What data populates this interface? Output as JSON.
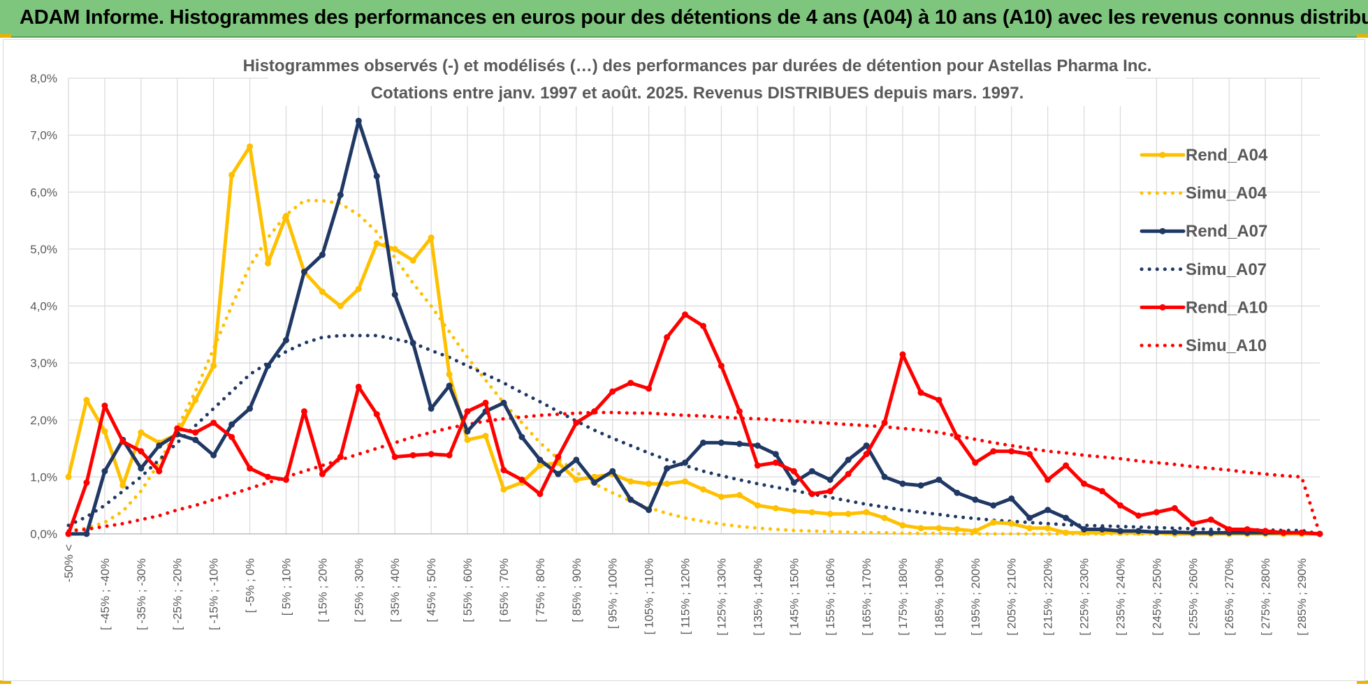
{
  "header": {
    "title": "ADAM Informe. Histogrammes des performances en euros pour des détentions de 4 ans (A04) à 10 ans (A10) avec les revenus connus distribués",
    "bg_color": "#7ec67d"
  },
  "chart_data": {
    "type": "line",
    "title_lines": [
      "Histogrammes observés (-) et modélisés (…) des performances par durées de détention pour Astellas Pharma Inc.",
      "Cotations entre janv. 1997 et août. 2025. Revenus DISTRIBUES depuis mars. 1997."
    ],
    "ylim": [
      0,
      8
    ],
    "y_ticks": [
      "0,0%",
      "1,0%",
      "2,0%",
      "3,0%",
      "4,0%",
      "5,0%",
      "6,0%",
      "7,0%",
      "8,0%"
    ],
    "grid": true,
    "legend_position": "right",
    "x_tick_labels": [
      "-50% <",
      "[ -45% ; -40%",
      "[ -35% ; -30%",
      "[ -25% ; -20%",
      "[ -15% ; -10%",
      "[ -5% ; 0%",
      "[ 5% ; 10%",
      "[ 15% ; 20%",
      "[ 25% ; 30%",
      "[ 35% ; 40%",
      "[ 45% ; 50%",
      "[ 55% ; 60%",
      "[ 65% ; 70%",
      "[ 75% ; 80%",
      "[ 85% ; 90%",
      "[ 95% ; 100%",
      "[ 105% ; 110%",
      "[ 115% ; 120%",
      "[ 125% ; 130%",
      "[ 135% ; 140%",
      "[ 145% ; 150%",
      "[ 155% ; 160%",
      "[ 165% ; 170%",
      "[ 175% ; 180%",
      "[ 185% ; 190%",
      "[ 195% ; 200%",
      "[ 205% ; 210%",
      "[ 215% ; 220%",
      "[ 225% ; 230%",
      "[ 235% ; 240%",
      "[ 245% ; 250%",
      "[ 255% ; 260%",
      "[ 265% ; 270%",
      "[ 275% ; 280%",
      "[ 285% ; 290%"
    ],
    "series": [
      {
        "name": "Rend_A04",
        "color": "#ffc000",
        "style": "solid",
        "markers": true,
        "values": [
          1.0,
          2.35,
          1.8,
          0.85,
          1.78,
          1.6,
          1.75,
          2.35,
          2.95,
          6.3,
          6.8,
          4.75,
          5.58,
          4.6,
          4.25,
          4.0,
          4.3,
          5.1,
          5.0,
          4.8,
          5.2,
          2.8,
          1.65,
          1.72,
          0.78,
          0.9,
          1.2,
          1.25,
          0.95,
          1.0,
          1.05,
          0.92,
          0.88,
          0.88,
          0.92,
          0.78,
          0.65,
          0.68,
          0.5,
          0.45,
          0.4,
          0.38,
          0.35,
          0.35,
          0.38,
          0.28,
          0.15,
          0.1,
          0.1,
          0.08,
          0.05,
          0.2,
          0.18,
          0.1,
          0.1,
          0.02,
          0.02,
          0.02,
          0.02,
          0.02,
          0.02,
          0.0,
          0.0,
          0.0,
          0.0,
          0.0,
          0.0,
          0.0,
          0.0,
          0.0
        ]
      },
      {
        "name": "Simu_A04",
        "color": "#ffc000",
        "style": "dotted",
        "markers": false,
        "values": [
          0.05,
          0.1,
          0.2,
          0.4,
          0.75,
          1.25,
          1.85,
          2.5,
          3.25,
          4.0,
          4.7,
          5.2,
          5.6,
          5.85,
          5.85,
          5.8,
          5.6,
          5.3,
          4.85,
          4.4,
          4.0,
          3.55,
          3.1,
          2.7,
          2.3,
          1.95,
          1.6,
          1.32,
          1.08,
          0.88,
          0.72,
          0.58,
          0.46,
          0.36,
          0.28,
          0.22,
          0.17,
          0.13,
          0.1,
          0.08,
          0.06,
          0.05,
          0.04,
          0.03,
          0.02,
          0.02,
          0.01,
          0.01,
          0.01,
          0.0,
          0.0,
          0.0,
          0.0,
          0.0,
          0.0,
          0.0,
          0.0,
          0.0,
          0.0,
          0.0,
          0.0,
          0.0,
          0.0,
          0.0,
          0.0,
          0.0,
          0.0,
          0.0,
          0.0,
          0.0
        ]
      },
      {
        "name": "Rend_A07",
        "color": "#1f3864",
        "style": "solid",
        "markers": true,
        "values": [
          0.0,
          0.0,
          1.1,
          1.65,
          1.15,
          1.55,
          1.75,
          1.65,
          1.38,
          1.92,
          2.2,
          2.95,
          3.4,
          4.6,
          4.9,
          5.95,
          7.25,
          6.28,
          4.2,
          3.35,
          2.2,
          2.6,
          1.8,
          2.15,
          2.3,
          1.7,
          1.3,
          1.05,
          1.3,
          0.9,
          1.1,
          0.6,
          0.42,
          1.15,
          1.25,
          1.6,
          1.6,
          1.58,
          1.55,
          1.4,
          0.9,
          1.1,
          0.95,
          1.3,
          1.55,
          1.0,
          0.88,
          0.85,
          0.95,
          0.72,
          0.6,
          0.5,
          0.62,
          0.28,
          0.42,
          0.28,
          0.08,
          0.08,
          0.05,
          0.05,
          0.03,
          0.03,
          0.02,
          0.02,
          0.02,
          0.02,
          0.02,
          0.02,
          0.02,
          0.0
        ]
      },
      {
        "name": "Simu_A07",
        "color": "#1f3864",
        "style": "dotted",
        "markers": false,
        "values": [
          0.15,
          0.3,
          0.5,
          0.75,
          1.0,
          1.3,
          1.6,
          1.9,
          2.2,
          2.5,
          2.8,
          3.0,
          3.2,
          3.35,
          3.45,
          3.48,
          3.48,
          3.48,
          3.42,
          3.35,
          3.22,
          3.1,
          2.95,
          2.8,
          2.65,
          2.48,
          2.32,
          2.15,
          1.98,
          1.82,
          1.68,
          1.55,
          1.42,
          1.3,
          1.2,
          1.1,
          1.02,
          0.95,
          0.88,
          0.82,
          0.76,
          0.7,
          0.64,
          0.58,
          0.52,
          0.47,
          0.42,
          0.38,
          0.34,
          0.3,
          0.27,
          0.24,
          0.22,
          0.2,
          0.18,
          0.16,
          0.15,
          0.14,
          0.13,
          0.12,
          0.11,
          0.1,
          0.09,
          0.08,
          0.08,
          0.07,
          0.07,
          0.06,
          0.06,
          0.0
        ]
      },
      {
        "name": "Rend_A10",
        "color": "#ff0000",
        "style": "solid",
        "markers": true,
        "values": [
          0.0,
          0.9,
          2.25,
          1.62,
          1.45,
          1.1,
          1.85,
          1.78,
          1.95,
          1.7,
          1.15,
          1.0,
          0.95,
          2.15,
          1.05,
          1.35,
          2.58,
          2.1,
          1.35,
          1.38,
          1.4,
          1.38,
          2.15,
          2.3,
          1.12,
          0.95,
          0.7,
          1.35,
          1.95,
          2.15,
          2.5,
          2.65,
          2.55,
          3.45,
          3.85,
          3.65,
          2.95,
          2.15,
          1.2,
          1.25,
          1.1,
          0.7,
          0.75,
          1.05,
          1.4,
          1.95,
          3.15,
          2.48,
          2.35,
          1.7,
          1.25,
          1.45,
          1.45,
          1.4,
          0.95,
          1.2,
          0.88,
          0.75,
          0.5,
          0.32,
          0.38,
          0.45,
          0.18,
          0.25,
          0.08,
          0.08,
          0.05,
          0.02,
          0.02,
          0.0
        ]
      },
      {
        "name": "Simu_A10",
        "color": "#ff0000",
        "style": "dotted",
        "markers": false,
        "values": [
          0.05,
          0.08,
          0.13,
          0.18,
          0.25,
          0.32,
          0.42,
          0.5,
          0.6,
          0.7,
          0.8,
          0.9,
          1.0,
          1.1,
          1.2,
          1.3,
          1.4,
          1.5,
          1.6,
          1.7,
          1.78,
          1.86,
          1.92,
          1.98,
          2.02,
          2.05,
          2.08,
          2.1,
          2.12,
          2.13,
          2.13,
          2.12,
          2.12,
          2.1,
          2.08,
          2.07,
          2.05,
          2.03,
          2.02,
          2.0,
          1.98,
          1.96,
          1.94,
          1.92,
          1.9,
          1.88,
          1.85,
          1.82,
          1.78,
          1.72,
          1.66,
          1.6,
          1.55,
          1.5,
          1.45,
          1.42,
          1.38,
          1.35,
          1.32,
          1.28,
          1.25,
          1.22,
          1.18,
          1.15,
          1.12,
          1.08,
          1.05,
          1.02,
          1.0,
          0.0
        ]
      }
    ]
  }
}
